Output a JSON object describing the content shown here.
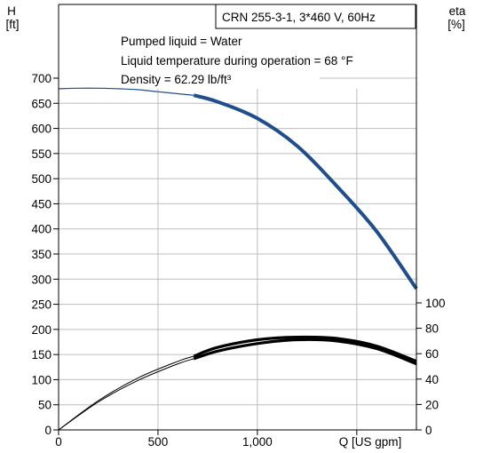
{
  "chart_data": {
    "type": "line",
    "title": "CRN 255-3-1, 3*460 V, 60Hz",
    "annotations": [
      "Pumped liquid = Water",
      "Liquid temperature during operation = 68 °F",
      "Density = 62.29 lb/ft³"
    ],
    "left_axis": {
      "label_line1": "H",
      "label_line2": "[ft]",
      "range": [
        0,
        700
      ],
      "ticks": [
        0,
        50,
        100,
        150,
        200,
        250,
        300,
        350,
        400,
        450,
        500,
        550,
        600,
        650,
        700
      ],
      "tick_labels": [
        "0",
        "50",
        "100",
        "150",
        "200",
        "250",
        "300",
        "350",
        "400",
        "450",
        "500",
        "550",
        "600",
        "650",
        "700"
      ]
    },
    "right_axis": {
      "label_line1": "eta",
      "label_line2": "[%]",
      "range": [
        0,
        100
      ],
      "ticks": [
        0,
        20,
        40,
        60,
        80,
        100
      ],
      "tick_labels": [
        "0",
        "20",
        "40",
        "60",
        "80",
        "100"
      ]
    },
    "x_axis": {
      "label": "Q [US gpm]",
      "range": [
        0,
        1800
      ],
      "ticks": [
        0,
        500,
        1000,
        1500
      ],
      "tick_labels": [
        "0",
        "500",
        "1,000",
        ""
      ]
    },
    "grid": true,
    "series": [
      {
        "axis": "left",
        "color": "#1f4e8c",
        "style": "head",
        "thin": {
          "x": [
            0,
            100,
            200,
            300,
            400,
            500,
            600,
            680
          ],
          "y": [
            679,
            680,
            680,
            679,
            677,
            673,
            669,
            666
          ]
        },
        "thick": {
          "x": [
            680,
            800,
            1000,
            1200,
            1400,
            1600,
            1800
          ],
          "y": [
            666,
            653,
            620,
            565,
            485,
            395,
            281
          ]
        }
      },
      {
        "axis": "right",
        "color": "#000000",
        "style": "efficiency-upper",
        "thin": {
          "x": [
            0,
            200,
            400,
            600,
            680
          ],
          "y": [
            0,
            23,
            41,
            54,
            58
          ]
        },
        "thick": {
          "x": [
            680,
            800,
            1000,
            1200,
            1400,
            1600,
            1800
          ],
          "y": [
            58,
            65,
            71,
            73,
            72,
            66,
            54
          ]
        }
      },
      {
        "axis": "right",
        "color": "#000000",
        "style": "efficiency-lower",
        "thin": {
          "x": [
            0,
            200,
            400,
            600,
            680
          ],
          "y": [
            0,
            22,
            39,
            52,
            56
          ]
        },
        "thick": {
          "x": [
            680,
            800,
            1000,
            1200,
            1400,
            1600,
            1800
          ],
          "y": [
            56,
            62,
            68,
            71,
            70,
            64,
            52
          ]
        }
      }
    ]
  }
}
